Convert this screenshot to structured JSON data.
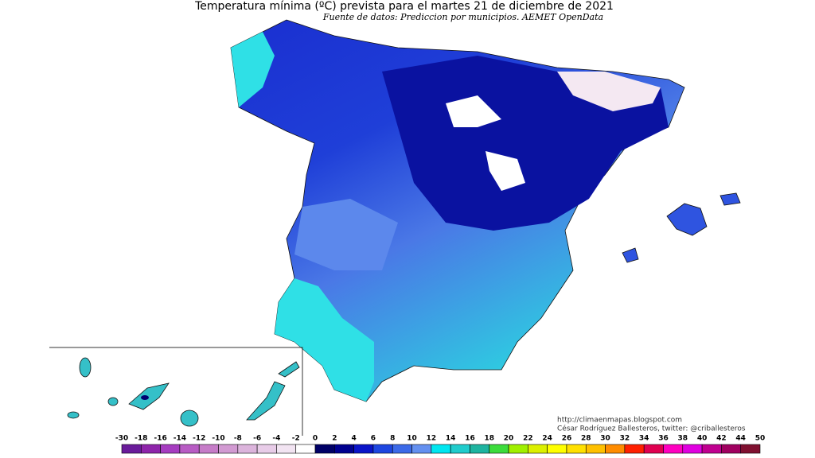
{
  "header": {
    "title": "Temperatura mínima (ºC) prevista para el martes 21 de diciembre de 2021",
    "subtitle": "Fuente de datos: Prediccion por municipios. AEMET OpenData"
  },
  "credits": {
    "url": "http://climaenmapas.blogspot.com",
    "author": "César Rodríguez Ballesteros, twitter: @criballesteros"
  },
  "legend": {
    "labels": [
      -30,
      -18,
      -16,
      -14,
      -12,
      -10,
      -8,
      -6,
      -4,
      -2,
      0,
      2,
      4,
      6,
      8,
      10,
      12,
      14,
      16,
      18,
      20,
      22,
      24,
      26,
      28,
      30,
      32,
      34,
      36,
      38,
      40,
      42,
      44,
      50
    ],
    "colors": [
      "#6a1b9a",
      "#8e24aa",
      "#a63cc0",
      "#b85cc4",
      "#c67cc8",
      "#d29ad2",
      "#dcb4dc",
      "#e8cce8",
      "#f2e4f2",
      "#ffffff",
      "#000066",
      "#00008f",
      "#0a14c8",
      "#1e46e0",
      "#3c6ae8",
      "#6490f0",
      "#00e6f0",
      "#20cccc",
      "#1eb4a0",
      "#3cdc3c",
      "#a0f000",
      "#dcf000",
      "#ffff00",
      "#ffe000",
      "#ffc000",
      "#ff8c00",
      "#ff2000",
      "#e00050",
      "#ff00c0",
      "#e000e0",
      "#c00090",
      "#a00060",
      "#801030"
    ]
  }
}
